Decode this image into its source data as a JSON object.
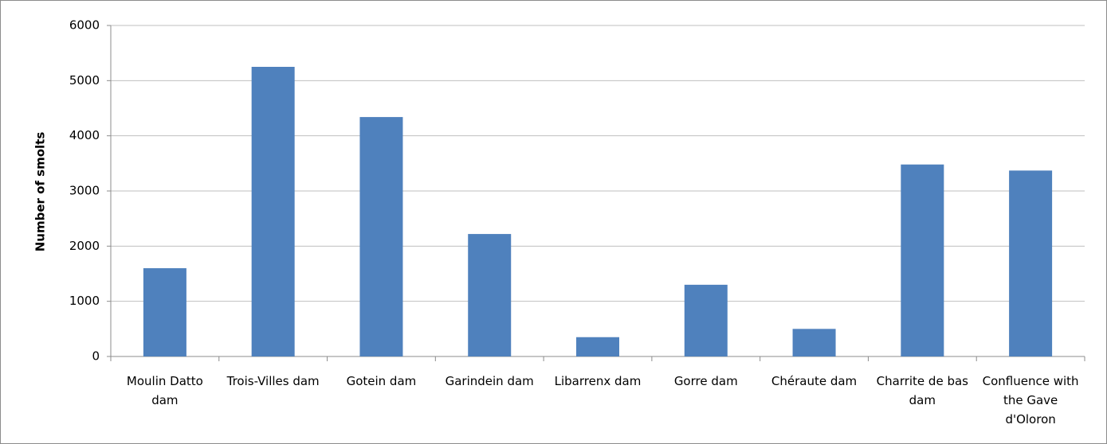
{
  "chart_data": {
    "type": "bar",
    "y_label": "Number of smolts",
    "categories": [
      "Moulin Datto dam",
      "Trois-Villes dam",
      "Gotein dam",
      "Garindein dam",
      "Libarrenx dam",
      "Gorre dam",
      "Chéraute dam",
      "Charrite de bas dam",
      "Confluence with the Gave d'Oloron"
    ],
    "values": [
      1600,
      5250,
      4340,
      2220,
      350,
      1300,
      500,
      3480,
      3370
    ],
    "color": "#4f81bd",
    "ylim": [
      0,
      6000
    ],
    "yticks": [
      0,
      1000,
      2000,
      3000,
      4000,
      5000,
      6000
    ],
    "grid": true
  }
}
